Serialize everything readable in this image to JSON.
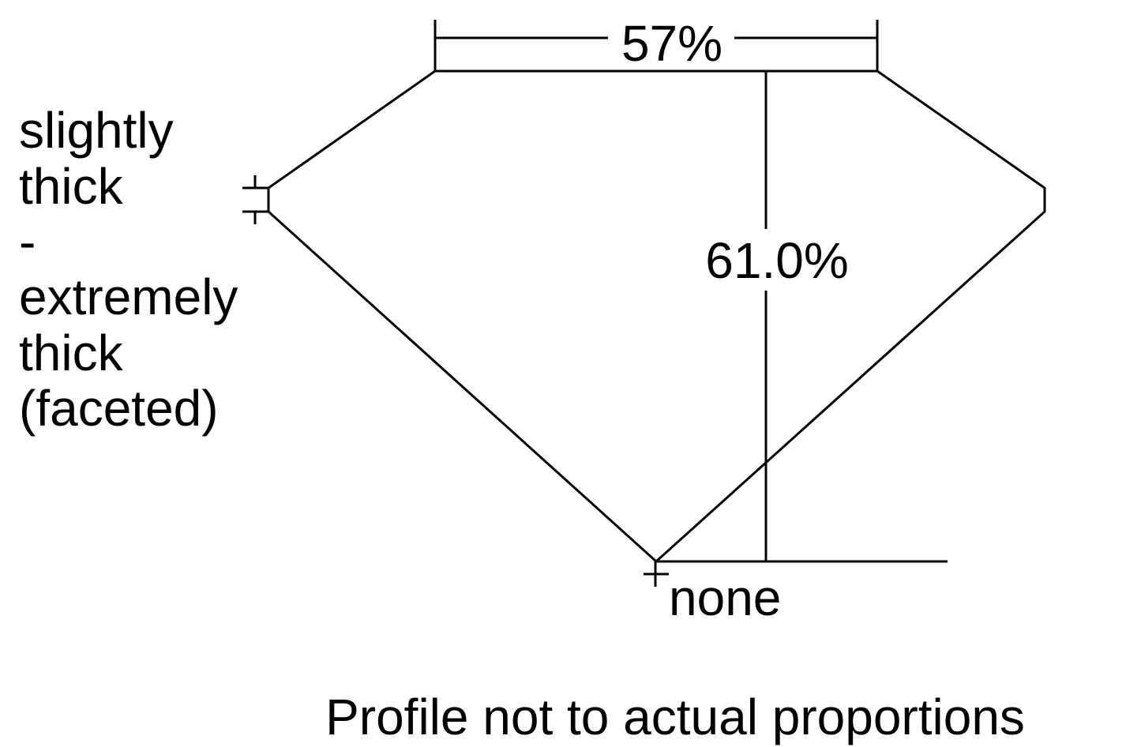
{
  "diagram": {
    "table_label": "57%",
    "depth_label": "61.0%",
    "girdle_label_lines": [
      "slightly",
      "thick",
      "-",
      "extremely",
      "thick",
      "(faceted)"
    ],
    "culet_label": "none",
    "caption": "Profile not to actual proportions",
    "line_color": "#000000",
    "background_color": "#ffffff"
  }
}
